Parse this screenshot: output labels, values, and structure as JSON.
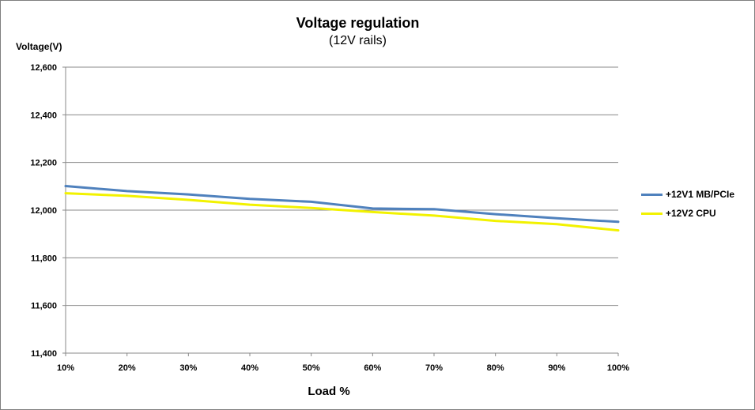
{
  "chart_data": {
    "type": "line",
    "title": "Voltage regulation",
    "subtitle": "(12V rails)",
    "ylabel": "Voltage(V)",
    "xlabel": "Load %",
    "categories": [
      "10%",
      "20%",
      "30%",
      "40%",
      "50%",
      "60%",
      "70%",
      "80%",
      "90%",
      "100%"
    ],
    "y_ticks": [
      "11,400",
      "11,600",
      "11,800",
      "12,000",
      "12,200",
      "12,400",
      "12,600"
    ],
    "y_tick_values": [
      11.4,
      11.6,
      11.8,
      12.0,
      12.2,
      12.4,
      12.6
    ],
    "ylim": [
      11.4,
      12.6
    ],
    "grid": true,
    "legend_position": "right",
    "series": [
      {
        "name": "+12V1 MB/PCIe",
        "color": "#4f81bd",
        "values": [
          12.101,
          12.08,
          12.066,
          12.047,
          12.035,
          12.007,
          12.004,
          11.983,
          11.966,
          11.951
        ]
      },
      {
        "name": "+12V2 CPU",
        "color": "#f2f200",
        "values": [
          12.071,
          12.06,
          12.043,
          12.023,
          12.009,
          11.992,
          11.977,
          11.955,
          11.941,
          11.915
        ]
      }
    ]
  }
}
